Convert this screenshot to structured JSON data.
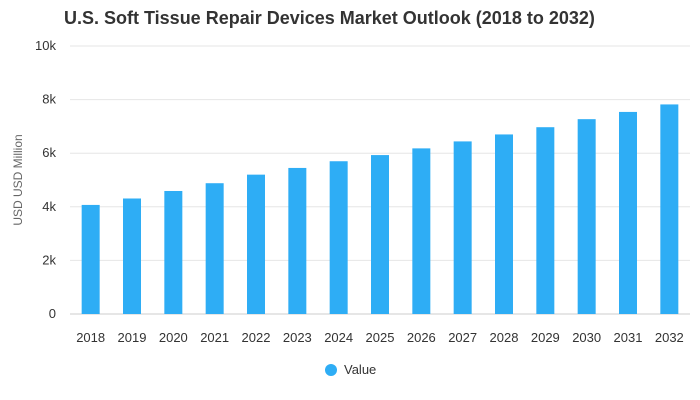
{
  "chart_data": {
    "type": "bar",
    "title": "U.S. Soft Tissue Repair Devices Market Outlook (2018 to 2032)",
    "xlabel": "",
    "ylabel": "USD USD Million",
    "categories": [
      "2018",
      "2019",
      "2020",
      "2021",
      "2022",
      "2023",
      "2024",
      "2025",
      "2026",
      "2027",
      "2028",
      "2029",
      "2030",
      "2031",
      "2032"
    ],
    "series": [
      {
        "name": "Value",
        "color": "#2EADF5",
        "values": [
          4070,
          4310,
          4590,
          4880,
          5200,
          5450,
          5700,
          5930,
          6180,
          6440,
          6700,
          6970,
          7270,
          7540,
          7820
        ]
      }
    ],
    "ylim": [
      0,
      10000
    ],
    "yticks": [
      {
        "value": 0,
        "label": "0"
      },
      {
        "value": 2000,
        "label": "2k"
      },
      {
        "value": 4000,
        "label": "4k"
      },
      {
        "value": 6000,
        "label": "6k"
      },
      {
        "value": 8000,
        "label": "8k"
      },
      {
        "value": 10000,
        "label": "10k"
      }
    ],
    "grid": true,
    "legend_position": "bottom-center"
  }
}
